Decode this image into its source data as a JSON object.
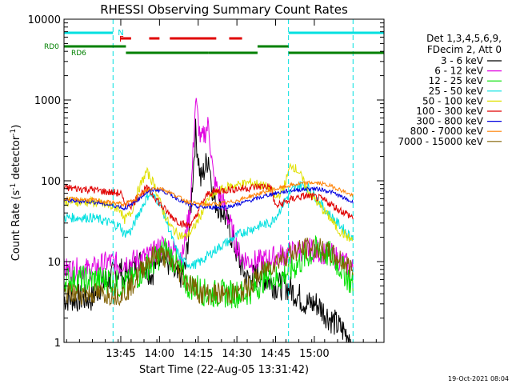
{
  "chart_data": {
    "type": "line",
    "title": "RHESSI Observing Summary Count Rates",
    "xlabel": "Start Time (22-Aug-05 13:31:42)",
    "ylabel_parts": {
      "main": "Count Rate (s",
      "sup1": "-1",
      "mid": " detector",
      "sup2": "-1",
      "end": ")"
    },
    "y_scale": "log",
    "xlim_min": [
      -8,
      116
    ],
    "ylim": [
      1,
      10000
    ],
    "x_ticks": [
      {
        "min": 14,
        "label": "13:45"
      },
      {
        "min": 29,
        "label": "14:00"
      },
      {
        "min": 44,
        "label": "14:15"
      },
      {
        "min": 59,
        "label": "14:30"
      },
      {
        "min": 74,
        "label": "14:45"
      },
      {
        "min": 89,
        "label": "15:00"
      }
    ],
    "y_ticks": [
      {
        "value": 1,
        "label": "1"
      },
      {
        "value": 10,
        "label": "10"
      },
      {
        "value": 100,
        "label": "100"
      },
      {
        "value": 1000,
        "label": "1000"
      },
      {
        "value": 10000,
        "label": "10000"
      }
    ],
    "legend": {
      "header": [
        "Det 1,3,4,5,6,9,",
        "FDecim 2, Att 0"
      ],
      "placement": "right"
    },
    "series": [
      {
        "name": "3 - 6 keV",
        "color": "#000000",
        "points": [
          [
            -8,
            3.5
          ],
          [
            3,
            3.5
          ],
          [
            6,
            5
          ],
          [
            14,
            8
          ],
          [
            15,
            6
          ],
          [
            18,
            8
          ],
          [
            22,
            10
          ],
          [
            26,
            7
          ],
          [
            30,
            15
          ],
          [
            32,
            10
          ],
          [
            36,
            6
          ],
          [
            39,
            8
          ],
          [
            41,
            40
          ],
          [
            43,
            400
          ],
          [
            45,
            100
          ],
          [
            48,
            200
          ],
          [
            50,
            60
          ],
          [
            54,
            40
          ],
          [
            57,
            20
          ],
          [
            60,
            10
          ],
          [
            63,
            6
          ],
          [
            68,
            7
          ],
          [
            74,
            5
          ],
          [
            78,
            5
          ],
          [
            82,
            4
          ],
          [
            86,
            3
          ],
          [
            90,
            3
          ],
          [
            95,
            2
          ],
          [
            99,
            1.5
          ],
          [
            103,
            1.2
          ]
        ]
      },
      {
        "name": "6 - 12 keV",
        "color": "#e000e0",
        "points": [
          [
            -8,
            8
          ],
          [
            3,
            8
          ],
          [
            6,
            9
          ],
          [
            10,
            10
          ],
          [
            14,
            9
          ],
          [
            15,
            10
          ],
          [
            18,
            10
          ],
          [
            22,
            11
          ],
          [
            26,
            12
          ],
          [
            30,
            16
          ],
          [
            34,
            14
          ],
          [
            38,
            12
          ],
          [
            41,
            50
          ],
          [
            43,
            1000
          ],
          [
            45,
            300
          ],
          [
            48,
            500
          ],
          [
            50,
            100
          ],
          [
            54,
            50
          ],
          [
            57,
            25
          ],
          [
            60,
            12
          ],
          [
            64,
            10
          ],
          [
            68,
            10
          ],
          [
            72,
            11
          ],
          [
            76,
            12
          ],
          [
            80,
            13
          ],
          [
            84,
            14
          ],
          [
            88,
            14
          ],
          [
            92,
            13
          ],
          [
            96,
            12
          ],
          [
            100,
            10
          ],
          [
            104,
            8
          ]
        ]
      },
      {
        "name": "12 - 25 keV",
        "color": "#00e000",
        "points": [
          [
            -8,
            6
          ],
          [
            3,
            6
          ],
          [
            6,
            6
          ],
          [
            10,
            6
          ],
          [
            14,
            5
          ],
          [
            15,
            5
          ],
          [
            19,
            6
          ],
          [
            23,
            8
          ],
          [
            27,
            10
          ],
          [
            31,
            14
          ],
          [
            35,
            10
          ],
          [
            40,
            5
          ],
          [
            43,
            5
          ],
          [
            47,
            4
          ],
          [
            51,
            4
          ],
          [
            55,
            4
          ],
          [
            59,
            4
          ],
          [
            62,
            4
          ],
          [
            67,
            5
          ],
          [
            71,
            7
          ],
          [
            75,
            6
          ],
          [
            80,
            8
          ],
          [
            85,
            11
          ],
          [
            90,
            14
          ],
          [
            95,
            12
          ],
          [
            100,
            8
          ],
          [
            104,
            5
          ]
        ]
      },
      {
        "name": "25 - 50 keV",
        "color": "#00e0e0",
        "points": [
          [
            -8,
            35
          ],
          [
            3,
            35
          ],
          [
            6,
            33
          ],
          [
            10,
            30
          ],
          [
            14,
            27
          ],
          [
            15,
            22
          ],
          [
            18,
            24
          ],
          [
            21,
            40
          ],
          [
            25,
            70
          ],
          [
            29,
            55
          ],
          [
            32,
            30
          ],
          [
            35,
            15
          ],
          [
            38,
            10
          ],
          [
            42,
            9
          ],
          [
            45,
            10
          ],
          [
            48,
            12
          ],
          [
            52,
            15
          ],
          [
            56,
            18
          ],
          [
            60,
            22
          ],
          [
            64,
            25
          ],
          [
            68,
            28
          ],
          [
            72,
            30
          ],
          [
            75,
            40
          ],
          [
            78,
            60
          ],
          [
            81,
            80
          ],
          [
            84,
            90
          ],
          [
            87,
            80
          ],
          [
            90,
            60
          ],
          [
            93,
            45
          ],
          [
            96,
            35
          ],
          [
            99,
            28
          ],
          [
            102,
            22
          ],
          [
            104,
            20
          ]
        ]
      },
      {
        "name": "50 - 100 keV",
        "color": "#e0e000",
        "points": [
          [
            -8,
            55
          ],
          [
            3,
            55
          ],
          [
            6,
            52
          ],
          [
            10,
            48
          ],
          [
            14,
            45
          ],
          [
            15,
            32
          ],
          [
            18,
            40
          ],
          [
            21,
            80
          ],
          [
            24,
            130
          ],
          [
            27,
            90
          ],
          [
            30,
            45
          ],
          [
            33,
            28
          ],
          [
            36,
            22
          ],
          [
            39,
            20
          ],
          [
            42,
            25
          ],
          [
            45,
            38
          ],
          [
            48,
            60
          ],
          [
            52,
            75
          ],
          [
            56,
            85
          ],
          [
            60,
            90
          ],
          [
            64,
            95
          ],
          [
            68,
            90
          ],
          [
            72,
            80
          ],
          [
            74,
            60
          ],
          [
            77,
            80
          ],
          [
            80,
            160
          ],
          [
            83,
            130
          ],
          [
            86,
            80
          ],
          [
            89,
            60
          ],
          [
            92,
            45
          ],
          [
            95,
            35
          ],
          [
            98,
            25
          ],
          [
            102,
            20
          ],
          [
            104,
            18
          ]
        ]
      },
      {
        "name": "100 - 300 keV",
        "color": "#e00000",
        "points": [
          [
            -8,
            82
          ],
          [
            3,
            78
          ],
          [
            6,
            75
          ],
          [
            10,
            72
          ],
          [
            14,
            70
          ],
          [
            15,
            55
          ],
          [
            18,
            50
          ],
          [
            21,
            65
          ],
          [
            24,
            80
          ],
          [
            27,
            65
          ],
          [
            30,
            48
          ],
          [
            33,
            38
          ],
          [
            36,
            32
          ],
          [
            39,
            28
          ],
          [
            42,
            30
          ],
          [
            45,
            50
          ],
          [
            48,
            70
          ],
          [
            52,
            75
          ],
          [
            56,
            78
          ],
          [
            60,
            80
          ],
          [
            64,
            82
          ],
          [
            68,
            85
          ],
          [
            72,
            85
          ],
          [
            74,
            48
          ],
          [
            78,
            55
          ],
          [
            82,
            62
          ],
          [
            86,
            65
          ],
          [
            90,
            62
          ],
          [
            94,
            55
          ],
          [
            98,
            45
          ],
          [
            101,
            40
          ],
          [
            104,
            35
          ]
        ]
      },
      {
        "name": "300 - 800 keV",
        "color": "#0000e0",
        "points": [
          [
            -8,
            57
          ],
          [
            3,
            55
          ],
          [
            6,
            53
          ],
          [
            10,
            50
          ],
          [
            14,
            48
          ],
          [
            15,
            45
          ],
          [
            18,
            50
          ],
          [
            21,
            60
          ],
          [
            24,
            72
          ],
          [
            27,
            78
          ],
          [
            30,
            76
          ],
          [
            33,
            68
          ],
          [
            36,
            60
          ],
          [
            39,
            53
          ],
          [
            42,
            49
          ],
          [
            45,
            47
          ],
          [
            48,
            47
          ],
          [
            52,
            47
          ],
          [
            56,
            48
          ],
          [
            60,
            52
          ],
          [
            64,
            57
          ],
          [
            68,
            62
          ],
          [
            72,
            68
          ],
          [
            76,
            72
          ],
          [
            80,
            76
          ],
          [
            84,
            78
          ],
          [
            88,
            80
          ],
          [
            92,
            78
          ],
          [
            96,
            72
          ],
          [
            100,
            62
          ],
          [
            104,
            54
          ]
        ]
      },
      {
        "name": "800 - 7000 keV",
        "color": "#ff8000",
        "points": [
          [
            -8,
            60
          ],
          [
            3,
            58
          ],
          [
            6,
            56
          ],
          [
            10,
            54
          ],
          [
            14,
            52
          ],
          [
            15,
            50
          ],
          [
            18,
            56
          ],
          [
            21,
            66
          ],
          [
            24,
            76
          ],
          [
            27,
            82
          ],
          [
            30,
            80
          ],
          [
            33,
            72
          ],
          [
            36,
            64
          ],
          [
            39,
            57
          ],
          [
            42,
            53
          ],
          [
            45,
            51
          ],
          [
            48,
            51
          ],
          [
            52,
            52
          ],
          [
            56,
            54
          ],
          [
            60,
            58
          ],
          [
            64,
            64
          ],
          [
            68,
            70
          ],
          [
            72,
            76
          ],
          [
            76,
            82
          ],
          [
            80,
            88
          ],
          [
            84,
            92
          ],
          [
            88,
            95
          ],
          [
            92,
            92
          ],
          [
            96,
            85
          ],
          [
            100,
            75
          ],
          [
            104,
            65
          ]
        ]
      },
      {
        "name": "7000 - 15000 keV",
        "color": "#806000",
        "points": [
          [
            -8,
            4
          ],
          [
            3,
            4
          ],
          [
            6,
            4
          ],
          [
            10,
            4
          ],
          [
            14,
            4
          ],
          [
            15,
            4
          ],
          [
            18,
            5
          ],
          [
            21,
            7
          ],
          [
            24,
            10
          ],
          [
            27,
            12
          ],
          [
            30,
            12
          ],
          [
            33,
            10
          ],
          [
            36,
            8
          ],
          [
            39,
            6
          ],
          [
            42,
            5
          ],
          [
            45,
            4
          ],
          [
            48,
            4
          ],
          [
            52,
            4
          ],
          [
            56,
            4
          ],
          [
            60,
            4
          ],
          [
            64,
            5
          ],
          [
            68,
            7
          ],
          [
            72,
            9
          ],
          [
            76,
            11
          ],
          [
            80,
            13
          ],
          [
            84,
            14
          ],
          [
            88,
            15
          ],
          [
            92,
            14
          ],
          [
            96,
            12
          ],
          [
            100,
            10
          ],
          [
            104,
            8
          ]
        ]
      }
    ],
    "markers": {
      "N": {
        "label": "N",
        "color": "#00e0e0",
        "bars": [
          [
            -8,
            11
          ],
          [
            79,
            116
          ]
        ]
      },
      "F": {
        "label": "F",
        "color": "#e00000",
        "bars": [
          [
            14,
            18
          ],
          [
            25,
            29
          ],
          [
            33,
            51
          ],
          [
            56,
            61
          ]
        ]
      },
      "RD0": {
        "label": "RD0",
        "color": "#008000",
        "bars": [
          [
            -8,
            16
          ],
          [
            67,
            79
          ]
        ]
      },
      "RD6": {
        "label": "RD6",
        "color": "#008000",
        "bars": [
          [
            16,
            48
          ],
          [
            48,
            67
          ],
          [
            79,
            116
          ]
        ]
      }
    },
    "vlines": {
      "color": "#00e0e0",
      "x_min": [
        -8,
        11,
        79,
        104
      ]
    }
  },
  "footer": {
    "timestamp": "19-Oct-2021 08:04"
  }
}
